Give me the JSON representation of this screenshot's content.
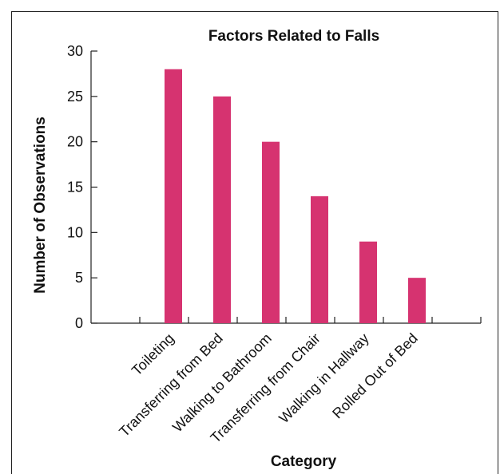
{
  "chart_data": {
    "type": "bar",
    "title": "Factors Related to Falls",
    "xlabel": "Category",
    "ylabel": "Number of Observations",
    "categories": [
      "Toileting",
      "Transferring from Bed",
      "Walking to Bathroom",
      "Transferring from Chair",
      "Walking in Hallway",
      "Rolled Out of Bed"
    ],
    "values": [
      28,
      25,
      20,
      14,
      9,
      5
    ],
    "ylim": [
      0,
      30
    ],
    "yticks": [
      0,
      5,
      10,
      15,
      20,
      25,
      30
    ],
    "grid": false,
    "legend": "none",
    "bar_color": "#d63370"
  }
}
